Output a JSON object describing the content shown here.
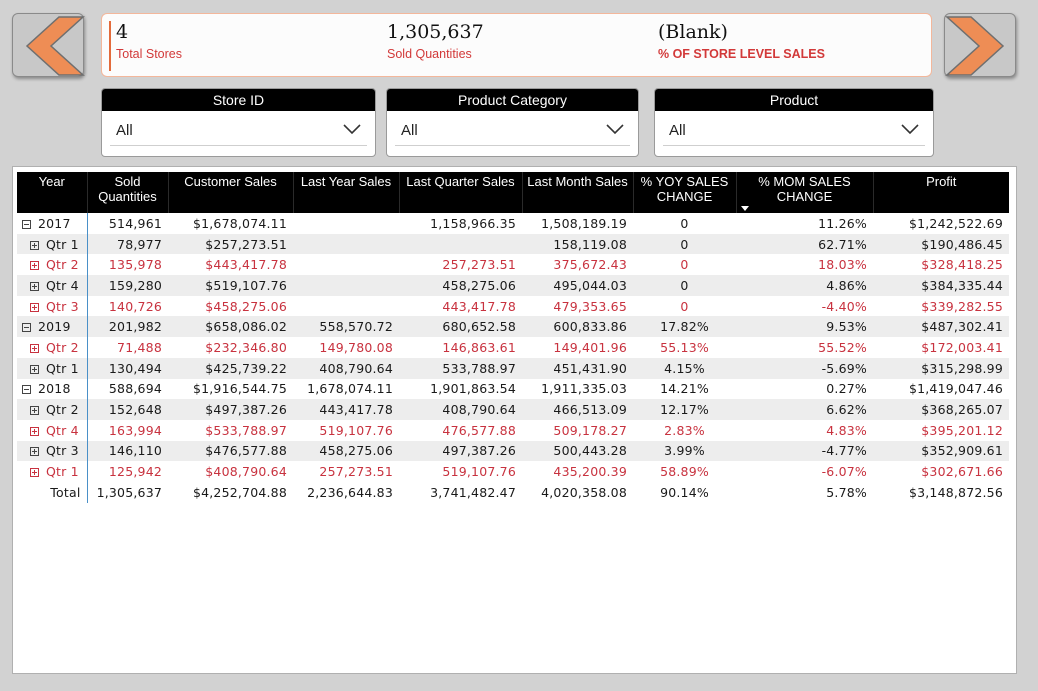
{
  "kpis": {
    "stores": {
      "value": "4",
      "label": "Total Stores"
    },
    "quantities": {
      "value": "1,305,637",
      "label": "Sold Quantities"
    },
    "share": {
      "value": "(Blank)",
      "label": "% OF STORE LEVEL SALES"
    }
  },
  "nav": {
    "prev_icon": "chevron-left-icon",
    "next_icon": "chevron-right-icon",
    "arrow_color": "#ee8d55"
  },
  "slicers": {
    "store": {
      "title": "Store ID",
      "value": "All"
    },
    "category": {
      "title": "Product Category",
      "value": "All"
    },
    "product": {
      "title": "Product",
      "value": "All"
    }
  },
  "matrix": {
    "columns": [
      "Year",
      "Sold Quantities",
      "Customer Sales",
      "Last Year Sales",
      "Last Quarter Sales",
      "Last Month Sales",
      "% YOY SALES CHANGE",
      "% MOM SALES CHANGE",
      "Profit"
    ],
    "rows": [
      {
        "label": "2017",
        "level": 0,
        "expand": "minus",
        "red": false,
        "alt": false,
        "cells": [
          "514,961",
          "$1,678,074.11",
          "",
          "1,158,966.35",
          "1,508,189.19",
          "0",
          "11.26%",
          "$1,242,522.69"
        ]
      },
      {
        "label": "Qtr 1",
        "level": 1,
        "expand": "plus",
        "red": false,
        "alt": true,
        "cells": [
          "78,977",
          "$257,273.51",
          "",
          "",
          "158,119.08",
          "0",
          "62.71%",
          "$190,486.45"
        ]
      },
      {
        "label": "Qtr 2",
        "level": 1,
        "expand": "plus",
        "red": true,
        "alt": false,
        "cells": [
          "135,978",
          "$443,417.78",
          "",
          "257,273.51",
          "375,672.43",
          "0",
          "18.03%",
          "$328,418.25"
        ]
      },
      {
        "label": "Qtr 4",
        "level": 1,
        "expand": "plus",
        "red": false,
        "alt": true,
        "cells": [
          "159,280",
          "$519,107.76",
          "",
          "458,275.06",
          "495,044.03",
          "0",
          "4.86%",
          "$384,335.44"
        ]
      },
      {
        "label": "Qtr 3",
        "level": 1,
        "expand": "plus",
        "red": true,
        "alt": false,
        "cells": [
          "140,726",
          "$458,275.06",
          "",
          "443,417.78",
          "479,353.65",
          "0",
          "-4.40%",
          "$339,282.55"
        ]
      },
      {
        "label": "2019",
        "level": 0,
        "expand": "minus",
        "red": false,
        "alt": true,
        "cells": [
          "201,982",
          "$658,086.02",
          "558,570.72",
          "680,652.58",
          "600,833.86",
          "17.82%",
          "9.53%",
          "$487,302.41"
        ]
      },
      {
        "label": "Qtr 2",
        "level": 1,
        "expand": "plus",
        "red": true,
        "alt": false,
        "cells": [
          "71,488",
          "$232,346.80",
          "149,780.08",
          "146,863.61",
          "149,401.96",
          "55.13%",
          "55.52%",
          "$172,003.41"
        ]
      },
      {
        "label": "Qtr 1",
        "level": 1,
        "expand": "plus",
        "red": false,
        "alt": true,
        "cells": [
          "130,494",
          "$425,739.22",
          "408,790.64",
          "533,788.97",
          "451,431.90",
          "4.15%",
          "-5.69%",
          "$315,298.99"
        ]
      },
      {
        "label": "2018",
        "level": 0,
        "expand": "minus",
        "red": false,
        "alt": false,
        "cells": [
          "588,694",
          "$1,916,544.75",
          "1,678,074.11",
          "1,901,863.54",
          "1,911,335.03",
          "14.21%",
          "0.27%",
          "$1,419,047.46"
        ]
      },
      {
        "label": "Qtr 2",
        "level": 1,
        "expand": "plus",
        "red": false,
        "alt": true,
        "cells": [
          "152,648",
          "$497,387.26",
          "443,417.78",
          "408,790.64",
          "466,513.09",
          "12.17%",
          "6.62%",
          "$368,265.07"
        ]
      },
      {
        "label": "Qtr 4",
        "level": 1,
        "expand": "plus",
        "red": true,
        "alt": false,
        "cells": [
          "163,994",
          "$533,788.97",
          "519,107.76",
          "476,577.88",
          "509,178.27",
          "2.83%",
          "4.83%",
          "$395,201.12"
        ]
      },
      {
        "label": "Qtr 3",
        "level": 1,
        "expand": "plus",
        "red": false,
        "alt": true,
        "cells": [
          "146,110",
          "$476,577.88",
          "458,275.06",
          "497,387.26",
          "500,443.28",
          "3.99%",
          "-4.77%",
          "$352,909.61"
        ]
      },
      {
        "label": "Qtr 1",
        "level": 1,
        "expand": "plus",
        "red": true,
        "alt": false,
        "cells": [
          "125,942",
          "$408,790.64",
          "257,273.51",
          "519,107.76",
          "435,200.39",
          "58.89%",
          "-6.07%",
          "$302,671.66"
        ]
      }
    ],
    "total": {
      "label": "Total",
      "cells": [
        "1,305,637",
        "$4,252,704.88",
        "2,236,644.83",
        "3,741,482.47",
        "4,020,358.08",
        "90.14%",
        "5.78%",
        "$3,148,872.56"
      ]
    }
  },
  "colors": {
    "accent_orange": "#ee8d55",
    "kpi_label_red": "#d23939",
    "row_red": "#c8323f",
    "header_bg": "#000000"
  }
}
